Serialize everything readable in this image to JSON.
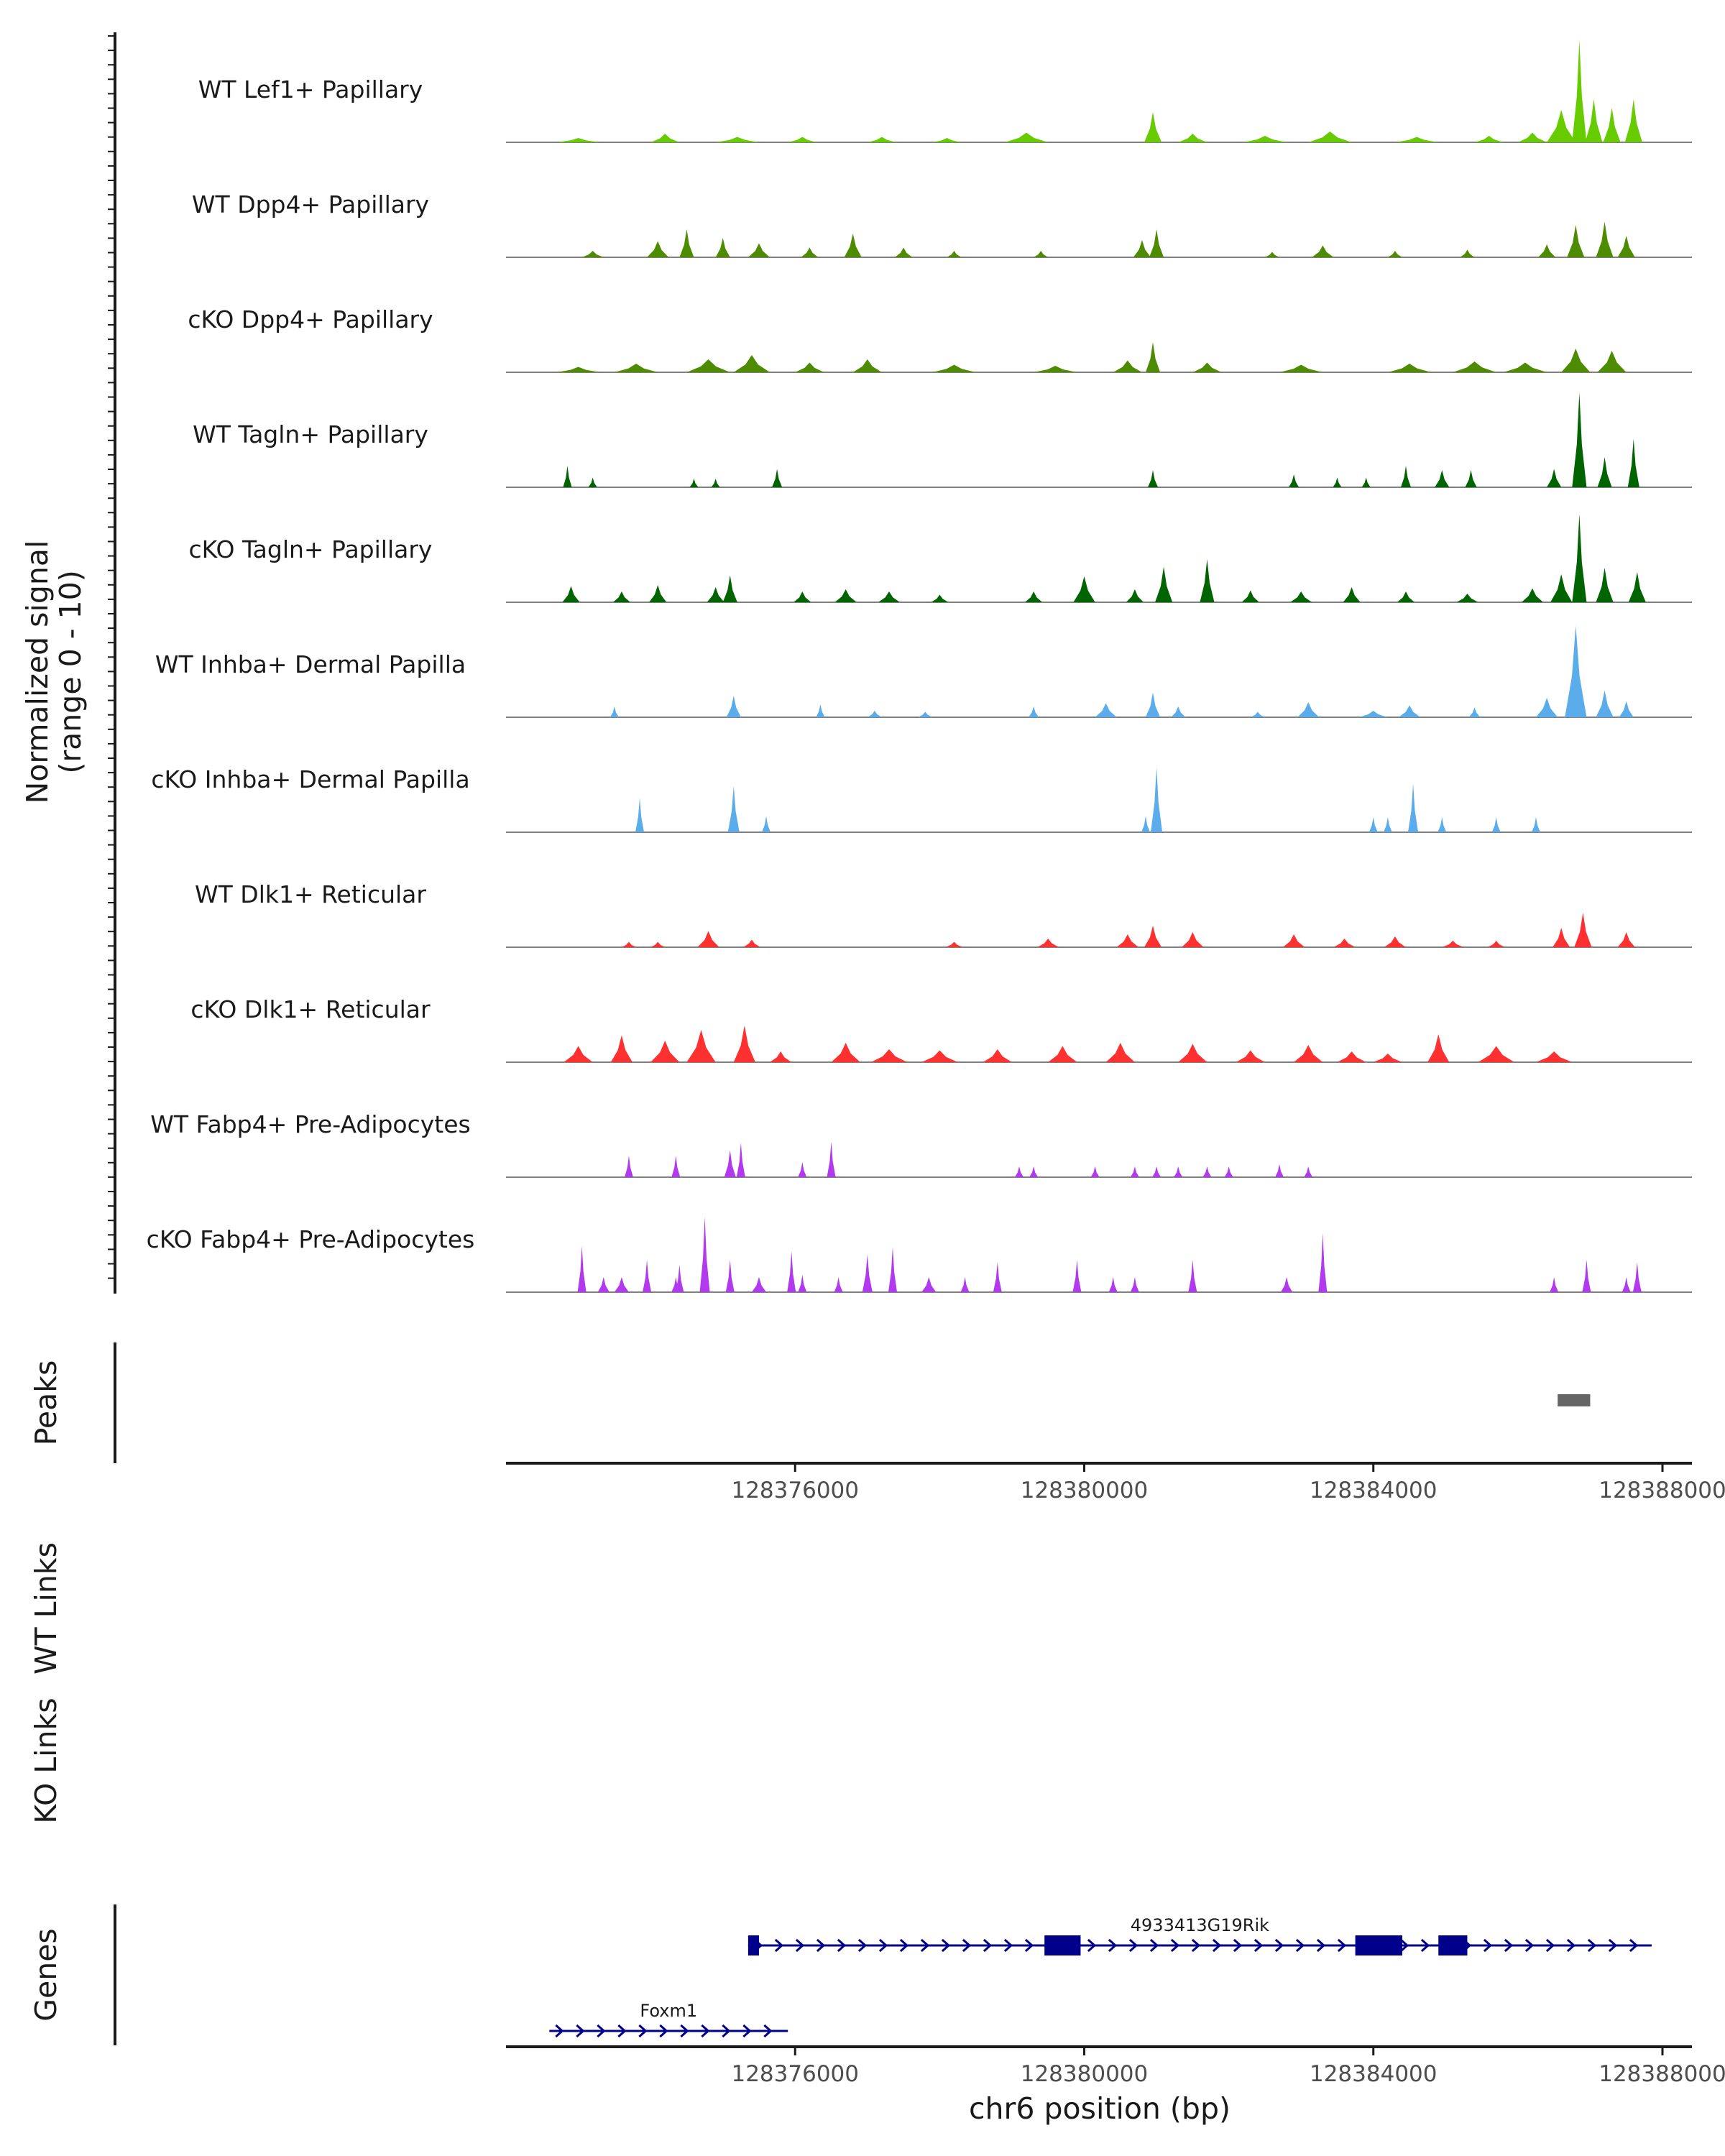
{
  "chart_data": {
    "type": "area",
    "title": "",
    "ylabel_line1": "Normalized signal",
    "ylabel_line2": "(range 0 - 10)",
    "ylim": [
      0,
      10
    ],
    "xlabel": "chr6 position (bp)",
    "xlim": [
      128372000,
      128388000
    ],
    "xticks": [
      {
        "value": 128376000,
        "label": "128376000"
      },
      {
        "value": 128380000,
        "label": "128380000"
      },
      {
        "value": 128384000,
        "label": "128384000"
      },
      {
        "value": 128388000,
        "label": "128388000"
      }
    ],
    "tracks": [
      {
        "name": "WT Lef1+ Papillary",
        "color": "#66cc00",
        "peaks": [
          [
            128373000,
            0.4,
            0.3
          ],
          [
            128374200,
            0.8,
            0.2
          ],
          [
            128375200,
            0.5,
            0.3
          ],
          [
            128376100,
            0.5,
            0.2
          ],
          [
            128377200,
            0.5,
            0.2
          ],
          [
            128378100,
            0.4,
            0.2
          ],
          [
            128379200,
            0.9,
            0.3
          ],
          [
            128380950,
            2.8,
            0.12
          ],
          [
            128381500,
            0.8,
            0.2
          ],
          [
            128382500,
            0.6,
            0.3
          ],
          [
            128383400,
            1.0,
            0.3
          ],
          [
            128384600,
            0.5,
            0.3
          ],
          [
            128385600,
            0.6,
            0.2
          ],
          [
            128386200,
            0.9,
            0.2
          ],
          [
            128386600,
            3.0,
            0.2
          ],
          [
            128386850,
            9.5,
            0.1
          ],
          [
            128387050,
            4.0,
            0.12
          ],
          [
            128387300,
            3.2,
            0.12
          ],
          [
            128387600,
            4.0,
            0.12
          ]
        ]
      },
      {
        "name": "WT Dpp4+ Papillary",
        "color": "#4d8b00",
        "peaks": [
          [
            128373200,
            0.6,
            0.15
          ],
          [
            128374100,
            1.5,
            0.15
          ],
          [
            128374500,
            2.6,
            0.1
          ],
          [
            128375000,
            1.8,
            0.1
          ],
          [
            128375500,
            1.3,
            0.15
          ],
          [
            128376200,
            0.9,
            0.12
          ],
          [
            128376800,
            2.2,
            0.12
          ],
          [
            128377500,
            0.9,
            0.12
          ],
          [
            128378200,
            0.6,
            0.1
          ],
          [
            128379400,
            0.6,
            0.1
          ],
          [
            128380800,
            1.6,
            0.12
          ],
          [
            128381000,
            2.6,
            0.1
          ],
          [
            128382600,
            0.5,
            0.1
          ],
          [
            128383300,
            1.1,
            0.15
          ],
          [
            128384300,
            0.6,
            0.1
          ],
          [
            128385300,
            0.7,
            0.1
          ],
          [
            128386400,
            1.2,
            0.12
          ],
          [
            128386800,
            3.0,
            0.12
          ],
          [
            128387200,
            3.3,
            0.12
          ],
          [
            128387500,
            2.0,
            0.12
          ]
        ]
      },
      {
        "name": "cKO Dpp4+ Papillary",
        "color": "#4d8b00",
        "peaks": [
          [
            128373000,
            0.5,
            0.3
          ],
          [
            128373800,
            0.8,
            0.3
          ],
          [
            128374800,
            1.2,
            0.3
          ],
          [
            128375400,
            1.6,
            0.25
          ],
          [
            128376200,
            0.9,
            0.2
          ],
          [
            128377000,
            1.2,
            0.2
          ],
          [
            128378200,
            0.7,
            0.3
          ],
          [
            128379600,
            0.6,
            0.3
          ],
          [
            128380600,
            1.1,
            0.2
          ],
          [
            128380950,
            2.8,
            0.1
          ],
          [
            128381700,
            0.9,
            0.2
          ],
          [
            128383000,
            0.7,
            0.3
          ],
          [
            128384500,
            0.8,
            0.3
          ],
          [
            128385400,
            1.0,
            0.3
          ],
          [
            128386100,
            0.9,
            0.3
          ],
          [
            128386800,
            2.2,
            0.2
          ],
          [
            128387300,
            2.0,
            0.2
          ]
        ]
      },
      {
        "name": "WT Tagln+ Papillary",
        "color": "#006400",
        "peaks": [
          [
            128372850,
            2.0,
            0.06
          ],
          [
            128373200,
            0.9,
            0.06
          ],
          [
            128374600,
            0.8,
            0.06
          ],
          [
            128374900,
            0.8,
            0.06
          ],
          [
            128375750,
            1.7,
            0.07
          ],
          [
            128380950,
            1.6,
            0.07
          ],
          [
            128382900,
            1.2,
            0.07
          ],
          [
            128383500,
            0.9,
            0.06
          ],
          [
            128383900,
            0.9,
            0.06
          ],
          [
            128384450,
            2.0,
            0.07
          ],
          [
            128384950,
            1.6,
            0.1
          ],
          [
            128385350,
            1.6,
            0.08
          ],
          [
            128386500,
            1.7,
            0.1
          ],
          [
            128386850,
            8.8,
            0.1
          ],
          [
            128387200,
            2.8,
            0.1
          ],
          [
            128387600,
            4.5,
            0.08
          ]
        ]
      },
      {
        "name": "cKO Tagln+ Papillary",
        "color": "#006400",
        "peaks": [
          [
            128372900,
            1.5,
            0.12
          ],
          [
            128373600,
            1.0,
            0.12
          ],
          [
            128374100,
            1.6,
            0.12
          ],
          [
            128374900,
            1.4,
            0.12
          ],
          [
            128375100,
            2.5,
            0.1
          ],
          [
            128376100,
            1.0,
            0.12
          ],
          [
            128376700,
            1.2,
            0.15
          ],
          [
            128377300,
            1.0,
            0.15
          ],
          [
            128378000,
            0.7,
            0.12
          ],
          [
            128379300,
            1.0,
            0.12
          ],
          [
            128380000,
            2.4,
            0.15
          ],
          [
            128380700,
            1.2,
            0.12
          ],
          [
            128381100,
            3.3,
            0.12
          ],
          [
            128381700,
            4.0,
            0.1
          ],
          [
            128382300,
            1.1,
            0.12
          ],
          [
            128383000,
            1.0,
            0.15
          ],
          [
            128383700,
            1.4,
            0.12
          ],
          [
            128384450,
            1.0,
            0.12
          ],
          [
            128385300,
            0.8,
            0.15
          ],
          [
            128386200,
            1.3,
            0.15
          ],
          [
            128386600,
            2.6,
            0.15
          ],
          [
            128386850,
            8.2,
            0.1
          ],
          [
            128387200,
            3.2,
            0.12
          ],
          [
            128387650,
            2.8,
            0.12
          ]
        ]
      },
      {
        "name": "WT Inhba+ Dermal Papilla",
        "color": "#5aacea",
        "peaks": [
          [
            128373500,
            1.0,
            0.06
          ],
          [
            128375150,
            2.0,
            0.1
          ],
          [
            128376350,
            1.2,
            0.06
          ],
          [
            128377100,
            0.6,
            0.1
          ],
          [
            128377800,
            0.5,
            0.1
          ],
          [
            128379300,
            1.0,
            0.07
          ],
          [
            128380300,
            1.3,
            0.15
          ],
          [
            128380950,
            2.3,
            0.1
          ],
          [
            128381300,
            1.0,
            0.1
          ],
          [
            128382400,
            0.5,
            0.1
          ],
          [
            128383100,
            1.4,
            0.15
          ],
          [
            128384000,
            0.6,
            0.2
          ],
          [
            128384500,
            1.1,
            0.15
          ],
          [
            128385400,
            0.9,
            0.08
          ],
          [
            128386400,
            1.8,
            0.15
          ],
          [
            128386800,
            8.5,
            0.15
          ],
          [
            128387200,
            2.5,
            0.12
          ],
          [
            128387500,
            1.5,
            0.1
          ]
        ]
      },
      {
        "name": "cKO Inhba+ Dermal Papilla",
        "color": "#5aacea",
        "peaks": [
          [
            128373850,
            3.2,
            0.05
          ],
          [
            128375150,
            4.3,
            0.08
          ],
          [
            128375600,
            1.5,
            0.05
          ],
          [
            128380850,
            1.5,
            0.05
          ],
          [
            128381000,
            6.0,
            0.08
          ],
          [
            128384000,
            1.4,
            0.05
          ],
          [
            128384200,
            1.4,
            0.05
          ],
          [
            128384550,
            4.5,
            0.07
          ],
          [
            128384950,
            1.4,
            0.05
          ],
          [
            128385700,
            1.4,
            0.05
          ],
          [
            128386250,
            1.4,
            0.05
          ]
        ]
      },
      {
        "name": "WT Dlk1+ Reticular",
        "color": "#ff3030",
        "peaks": [
          [
            128373700,
            0.5,
            0.1
          ],
          [
            128374100,
            0.5,
            0.1
          ],
          [
            128374800,
            1.5,
            0.15
          ],
          [
            128375400,
            0.7,
            0.12
          ],
          [
            128378200,
            0.5,
            0.12
          ],
          [
            128379500,
            0.8,
            0.15
          ],
          [
            128380600,
            1.2,
            0.15
          ],
          [
            128380950,
            2.0,
            0.12
          ],
          [
            128381500,
            1.4,
            0.15
          ],
          [
            128382900,
            1.2,
            0.15
          ],
          [
            128383600,
            0.8,
            0.15
          ],
          [
            128384300,
            1.0,
            0.15
          ],
          [
            128385100,
            0.6,
            0.15
          ],
          [
            128385700,
            0.6,
            0.12
          ],
          [
            128386600,
            1.8,
            0.12
          ],
          [
            128386900,
            3.2,
            0.12
          ],
          [
            128387500,
            1.4,
            0.12
          ]
        ]
      },
      {
        "name": "cKO Dlk1+ Reticular",
        "color": "#ff3030",
        "peaks": [
          [
            128373000,
            1.5,
            0.2
          ],
          [
            128373600,
            2.5,
            0.15
          ],
          [
            128374200,
            2.0,
            0.2
          ],
          [
            128374700,
            3.0,
            0.2
          ],
          [
            128375300,
            3.4,
            0.15
          ],
          [
            128375800,
            1.0,
            0.15
          ],
          [
            128376700,
            1.8,
            0.2
          ],
          [
            128377300,
            1.2,
            0.25
          ],
          [
            128378000,
            1.1,
            0.25
          ],
          [
            128378800,
            1.2,
            0.2
          ],
          [
            128379700,
            1.5,
            0.2
          ],
          [
            128380500,
            1.8,
            0.2
          ],
          [
            128381500,
            1.7,
            0.2
          ],
          [
            128382300,
            1.1,
            0.2
          ],
          [
            128383100,
            1.6,
            0.2
          ],
          [
            128383700,
            1.0,
            0.2
          ],
          [
            128384200,
            0.8,
            0.2
          ],
          [
            128384900,
            2.6,
            0.15
          ],
          [
            128385700,
            1.5,
            0.25
          ],
          [
            128386500,
            1.0,
            0.25
          ]
        ]
      },
      {
        "name": "WT Fabp4+ Pre-Adipocytes",
        "color": "#b23aee",
        "peaks": [
          [
            128373700,
            2.0,
            0.05
          ],
          [
            128374350,
            2.0,
            0.05
          ],
          [
            128375100,
            2.5,
            0.08
          ],
          [
            128375250,
            3.2,
            0.05
          ],
          [
            128376100,
            1.4,
            0.06
          ],
          [
            128376500,
            3.3,
            0.06
          ],
          [
            128379100,
            1.0,
            0.06
          ],
          [
            128379300,
            1.0,
            0.05
          ],
          [
            128380150,
            1.0,
            0.05
          ],
          [
            128380700,
            1.0,
            0.05
          ],
          [
            128381000,
            1.0,
            0.05
          ],
          [
            128381300,
            1.0,
            0.05
          ],
          [
            128381700,
            1.0,
            0.05
          ],
          [
            128382000,
            1.0,
            0.05
          ],
          [
            128382700,
            1.2,
            0.05
          ],
          [
            128383100,
            1.0,
            0.05
          ]
        ]
      },
      {
        "name": "cKO Fabp4+ Pre-Adipocytes",
        "color": "#b23aee",
        "peaks": [
          [
            128373050,
            4.3,
            0.06
          ],
          [
            128373350,
            1.4,
            0.08
          ],
          [
            128373600,
            1.4,
            0.1
          ],
          [
            128373950,
            3.0,
            0.06
          ],
          [
            128374350,
            1.4,
            0.06
          ],
          [
            128374750,
            7.0,
            0.07
          ],
          [
            128374400,
            2.5,
            0.06
          ],
          [
            128375100,
            3.0,
            0.06
          ],
          [
            128375500,
            1.4,
            0.1
          ],
          [
            128375950,
            3.8,
            0.06
          ],
          [
            128376100,
            1.6,
            0.06
          ],
          [
            128376600,
            1.4,
            0.06
          ],
          [
            128377000,
            3.5,
            0.07
          ],
          [
            128377350,
            4.2,
            0.06
          ],
          [
            128377850,
            1.4,
            0.1
          ],
          [
            128378350,
            1.4,
            0.05
          ],
          [
            128378800,
            2.8,
            0.05
          ],
          [
            128379900,
            3.0,
            0.05
          ],
          [
            128380400,
            1.4,
            0.05
          ],
          [
            128380700,
            1.4,
            0.05
          ],
          [
            128381500,
            3.0,
            0.06
          ],
          [
            128382800,
            1.4,
            0.08
          ],
          [
            128383300,
            5.5,
            0.06
          ],
          [
            128386500,
            1.4,
            0.05
          ],
          [
            128386950,
            3.0,
            0.06
          ],
          [
            128387500,
            1.4,
            0.05
          ],
          [
            128387650,
            2.8,
            0.04
          ]
        ]
      }
    ],
    "peaks_track": {
      "label": "Peaks",
      "color": "#666666",
      "regions": [
        [
          128386550,
          128387000
        ]
      ]
    },
    "wt_links_label": "WT Links",
    "ko_links_label": "KO Links",
    "genes_track": {
      "label": "Genes",
      "color": "#00008b",
      "genes": [
        {
          "name": "4933413G19Rik",
          "start": 128375350,
          "end": 128387850,
          "strand": "+",
          "exons": [
            [
              128375350,
              128375500
            ],
            [
              128379450,
              128379950
            ],
            [
              128383750,
              128384400
            ],
            [
              128384900,
              128385300
            ]
          ]
        },
        {
          "name": "Foxm1",
          "start": 128372600,
          "end": 128375900,
          "strand": "+",
          "exons": []
        }
      ]
    }
  }
}
